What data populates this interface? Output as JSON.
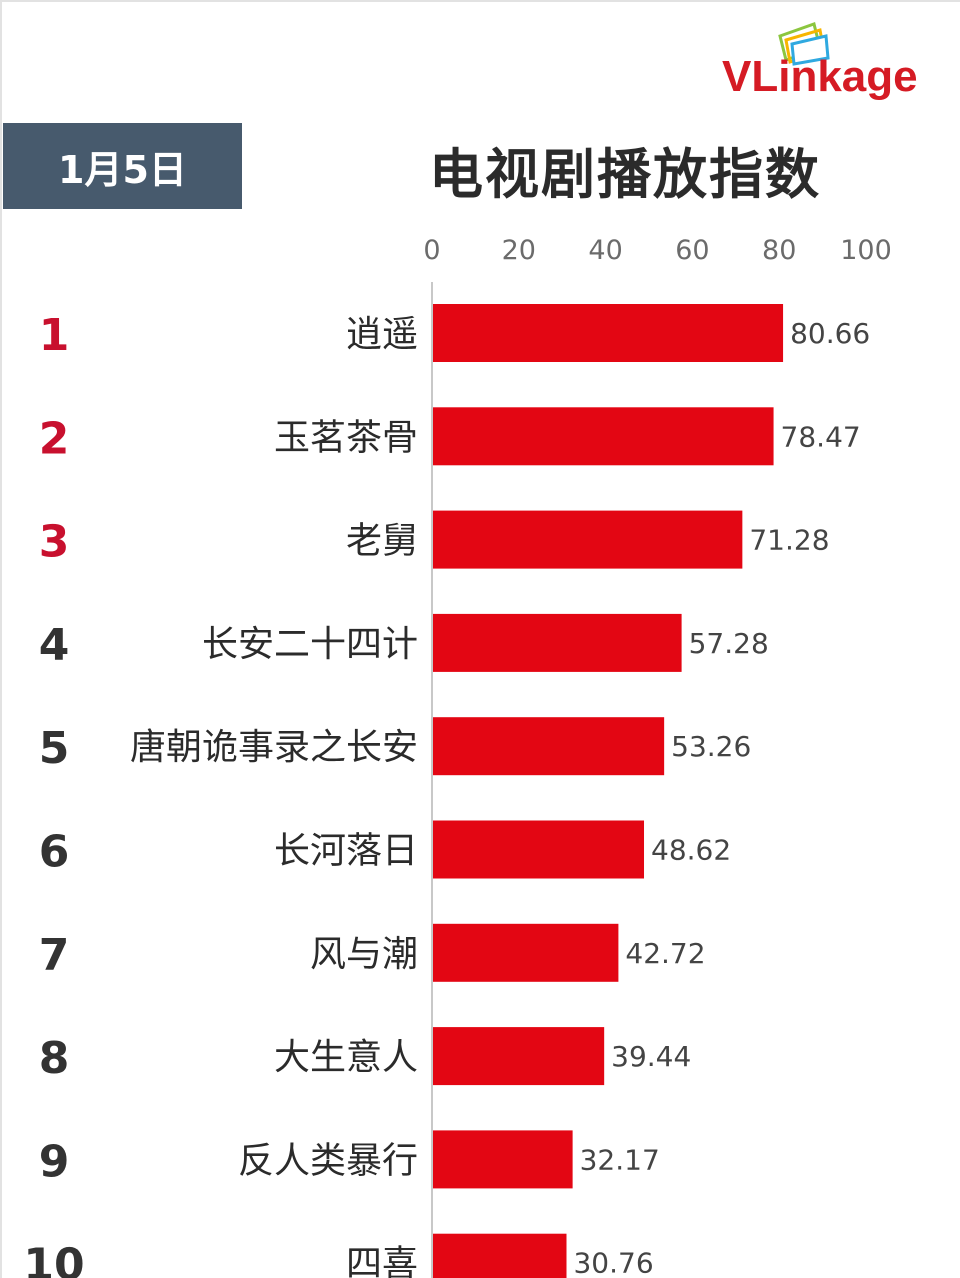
{
  "logo": {
    "brand": "VLinkage"
  },
  "date_label": "1月5日",
  "chart_data": {
    "type": "bar",
    "orientation": "horizontal",
    "title": "电视剧播放指数",
    "xlim": [
      0,
      100
    ],
    "xticks": [
      0,
      20,
      40,
      60,
      80,
      100
    ],
    "categories": [
      "逍遥",
      "玉茗茶骨",
      "老舅",
      "长安二十四计",
      "唐朝诡事录之长安",
      "长河落日",
      "风与潮",
      "大生意人",
      "反人类暴行",
      "四喜"
    ],
    "ranks": [
      "1",
      "2",
      "3",
      "4",
      "5",
      "6",
      "7",
      "8",
      "9",
      "10"
    ],
    "values": [
      80.66,
      78.47,
      71.28,
      57.28,
      53.26,
      48.62,
      42.72,
      39.44,
      32.17,
      30.76
    ],
    "value_labels": [
      "80.66",
      "78.47",
      "71.28",
      "57.28",
      "53.26",
      "48.62",
      "42.72",
      "39.44",
      "32.17",
      "30.76"
    ],
    "bar_color": "#e30613",
    "top_rank_color": "#c8102e",
    "other_rank_color": "#333333",
    "grid": false,
    "legend": "none"
  }
}
